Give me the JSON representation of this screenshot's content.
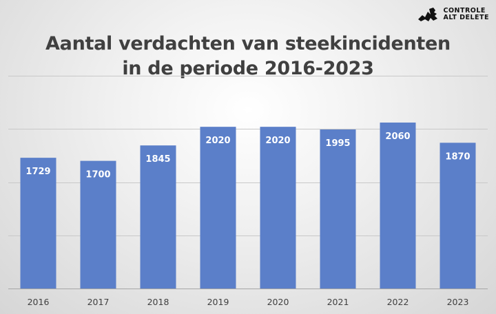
{
  "logo": {
    "line1": "CONTROLE",
    "line2": "ALT DELETE",
    "icon": "controle-alt-delete-logo-icon"
  },
  "chart_data": {
    "type": "bar",
    "title": [
      "Aantal verdachten van steekincidenten",
      "in de periode 2016-2023"
    ],
    "categories": [
      "2016",
      "2017",
      "2018",
      "2019",
      "2020",
      "2021",
      "2022",
      "2023"
    ],
    "values": [
      1729,
      1700,
      1845,
      2020,
      2020,
      1995,
      2060,
      1870
    ],
    "data_labels": [
      "1729",
      "1700",
      "1845",
      "2020",
      "2020",
      "1995",
      "2060",
      "1870"
    ],
    "xlabel": "",
    "ylabel": "",
    "ylim": [
      500,
      2500
    ],
    "grid": true,
    "legend": "none",
    "bar_color": "#5b7fc9"
  }
}
